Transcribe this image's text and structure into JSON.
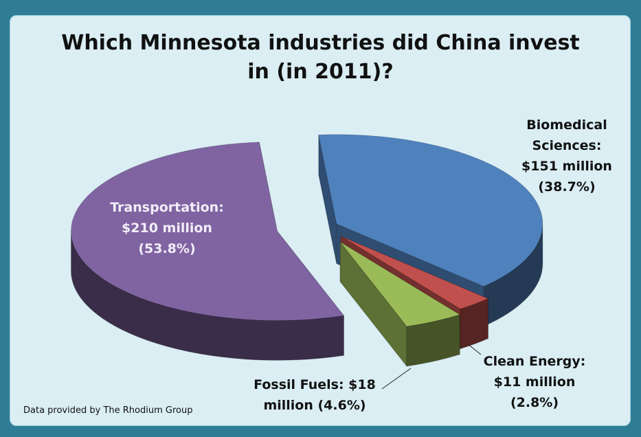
{
  "title_lines": [
    "Which Minnesota industries did China invest",
    "in (in 2011)?"
  ],
  "source_note": "Data provided by The Rhodium Group",
  "chart_data": {
    "type": "pie",
    "style": "3d exploded pie",
    "title": "Which Minnesota industries did China invest in (in 2011)?",
    "unit": "$ million",
    "slices": [
      {
        "name": "Biomedical Sciences",
        "value": 151,
        "percent": 38.7,
        "color": "#4f81bd",
        "label_lines": [
          "Biomedical",
          "Sciences:",
          "$151 million",
          "(38.7%)"
        ],
        "label_color": "#111111"
      },
      {
        "name": "Clean Energy",
        "value": 11,
        "percent": 2.8,
        "color": "#c0504d",
        "label_lines": [
          "Clean Energy:",
          "$11 million",
          "(2.8%)"
        ],
        "label_color": "#111111"
      },
      {
        "name": "Fossil Fuels",
        "value": 18,
        "percent": 4.6,
        "color": "#9bbb59",
        "label_lines": [
          "Fossil Fuels: $18",
          "million (4.6%)"
        ],
        "label_color": "#111111"
      },
      {
        "name": "Transportation",
        "value": 210,
        "percent": 53.8,
        "color": "#8064a2",
        "label_lines": [
          "Transportation:",
          "$210 million",
          "(53.8%)"
        ],
        "label_color": "#f2eef8"
      }
    ]
  }
}
